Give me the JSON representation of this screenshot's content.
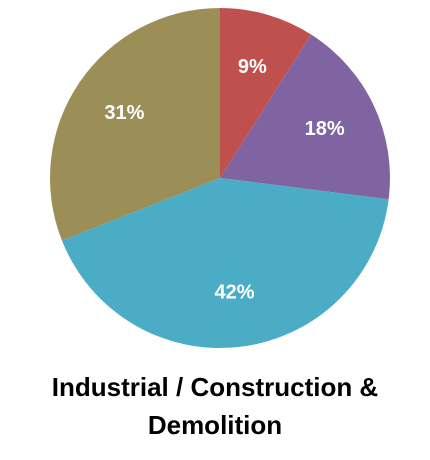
{
  "chart_data": {
    "type": "pie",
    "title": "Industrial / Construction & Demolition",
    "categories": [
      "",
      "",
      "",
      ""
    ],
    "values": [
      9,
      18,
      42,
      31
    ],
    "labels": [
      "9%",
      "18%",
      "42%",
      "31%"
    ],
    "colors": [
      "#c0504d",
      "#8064a2",
      "#4bacc6",
      "#9b8e57"
    ]
  }
}
